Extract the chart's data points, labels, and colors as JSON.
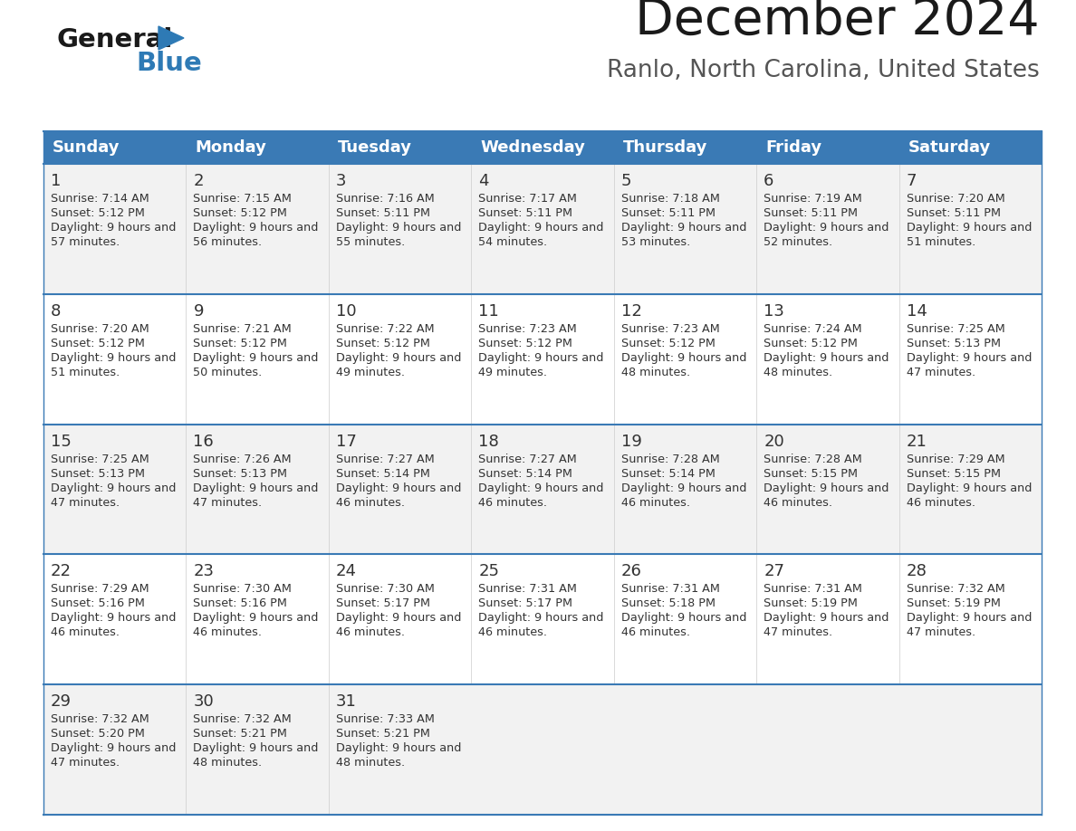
{
  "title": "December 2024",
  "subtitle": "Ranlo, North Carolina, United States",
  "days_of_week": [
    "Sunday",
    "Monday",
    "Tuesday",
    "Wednesday",
    "Thursday",
    "Friday",
    "Saturday"
  ],
  "header_bg": "#3a7ab5",
  "header_text": "#ffffff",
  "row_bg_odd": "#f2f2f2",
  "row_bg_even": "#ffffff",
  "cell_text_color": "#333333",
  "day_number_color": "#333333",
  "border_color": "#3a7ab5",
  "logo_general_color": "#1a1a1a",
  "logo_blue_color": "#2e7ab5",
  "calendar_data": [
    [
      {
        "day": 1,
        "sunrise": "7:14 AM",
        "sunset": "5:12 PM",
        "daylight": "9 hours and 57 minutes"
      },
      {
        "day": 2,
        "sunrise": "7:15 AM",
        "sunset": "5:12 PM",
        "daylight": "9 hours and 56 minutes"
      },
      {
        "day": 3,
        "sunrise": "7:16 AM",
        "sunset": "5:11 PM",
        "daylight": "9 hours and 55 minutes"
      },
      {
        "day": 4,
        "sunrise": "7:17 AM",
        "sunset": "5:11 PM",
        "daylight": "9 hours and 54 minutes"
      },
      {
        "day": 5,
        "sunrise": "7:18 AM",
        "sunset": "5:11 PM",
        "daylight": "9 hours and 53 minutes"
      },
      {
        "day": 6,
        "sunrise": "7:19 AM",
        "sunset": "5:11 PM",
        "daylight": "9 hours and 52 minutes"
      },
      {
        "day": 7,
        "sunrise": "7:20 AM",
        "sunset": "5:11 PM",
        "daylight": "9 hours and 51 minutes"
      }
    ],
    [
      {
        "day": 8,
        "sunrise": "7:20 AM",
        "sunset": "5:12 PM",
        "daylight": "9 hours and 51 minutes"
      },
      {
        "day": 9,
        "sunrise": "7:21 AM",
        "sunset": "5:12 PM",
        "daylight": "9 hours and 50 minutes"
      },
      {
        "day": 10,
        "sunrise": "7:22 AM",
        "sunset": "5:12 PM",
        "daylight": "9 hours and 49 minutes"
      },
      {
        "day": 11,
        "sunrise": "7:23 AM",
        "sunset": "5:12 PM",
        "daylight": "9 hours and 49 minutes"
      },
      {
        "day": 12,
        "sunrise": "7:23 AM",
        "sunset": "5:12 PM",
        "daylight": "9 hours and 48 minutes"
      },
      {
        "day": 13,
        "sunrise": "7:24 AM",
        "sunset": "5:12 PM",
        "daylight": "9 hours and 48 minutes"
      },
      {
        "day": 14,
        "sunrise": "7:25 AM",
        "sunset": "5:13 PM",
        "daylight": "9 hours and 47 minutes"
      }
    ],
    [
      {
        "day": 15,
        "sunrise": "7:25 AM",
        "sunset": "5:13 PM",
        "daylight": "9 hours and 47 minutes"
      },
      {
        "day": 16,
        "sunrise": "7:26 AM",
        "sunset": "5:13 PM",
        "daylight": "9 hours and 47 minutes"
      },
      {
        "day": 17,
        "sunrise": "7:27 AM",
        "sunset": "5:14 PM",
        "daylight": "9 hours and 46 minutes"
      },
      {
        "day": 18,
        "sunrise": "7:27 AM",
        "sunset": "5:14 PM",
        "daylight": "9 hours and 46 minutes"
      },
      {
        "day": 19,
        "sunrise": "7:28 AM",
        "sunset": "5:14 PM",
        "daylight": "9 hours and 46 minutes"
      },
      {
        "day": 20,
        "sunrise": "7:28 AM",
        "sunset": "5:15 PM",
        "daylight": "9 hours and 46 minutes"
      },
      {
        "day": 21,
        "sunrise": "7:29 AM",
        "sunset": "5:15 PM",
        "daylight": "9 hours and 46 minutes"
      }
    ],
    [
      {
        "day": 22,
        "sunrise": "7:29 AM",
        "sunset": "5:16 PM",
        "daylight": "9 hours and 46 minutes"
      },
      {
        "day": 23,
        "sunrise": "7:30 AM",
        "sunset": "5:16 PM",
        "daylight": "9 hours and 46 minutes"
      },
      {
        "day": 24,
        "sunrise": "7:30 AM",
        "sunset": "5:17 PM",
        "daylight": "9 hours and 46 minutes"
      },
      {
        "day": 25,
        "sunrise": "7:31 AM",
        "sunset": "5:17 PM",
        "daylight": "9 hours and 46 minutes"
      },
      {
        "day": 26,
        "sunrise": "7:31 AM",
        "sunset": "5:18 PM",
        "daylight": "9 hours and 46 minutes"
      },
      {
        "day": 27,
        "sunrise": "7:31 AM",
        "sunset": "5:19 PM",
        "daylight": "9 hours and 47 minutes"
      },
      {
        "day": 28,
        "sunrise": "7:32 AM",
        "sunset": "5:19 PM",
        "daylight": "9 hours and 47 minutes"
      }
    ],
    [
      {
        "day": 29,
        "sunrise": "7:32 AM",
        "sunset": "5:20 PM",
        "daylight": "9 hours and 47 minutes"
      },
      {
        "day": 30,
        "sunrise": "7:32 AM",
        "sunset": "5:21 PM",
        "daylight": "9 hours and 48 minutes"
      },
      {
        "day": 31,
        "sunrise": "7:33 AM",
        "sunset": "5:21 PM",
        "daylight": "9 hours and 48 minutes"
      },
      null,
      null,
      null,
      null
    ]
  ]
}
